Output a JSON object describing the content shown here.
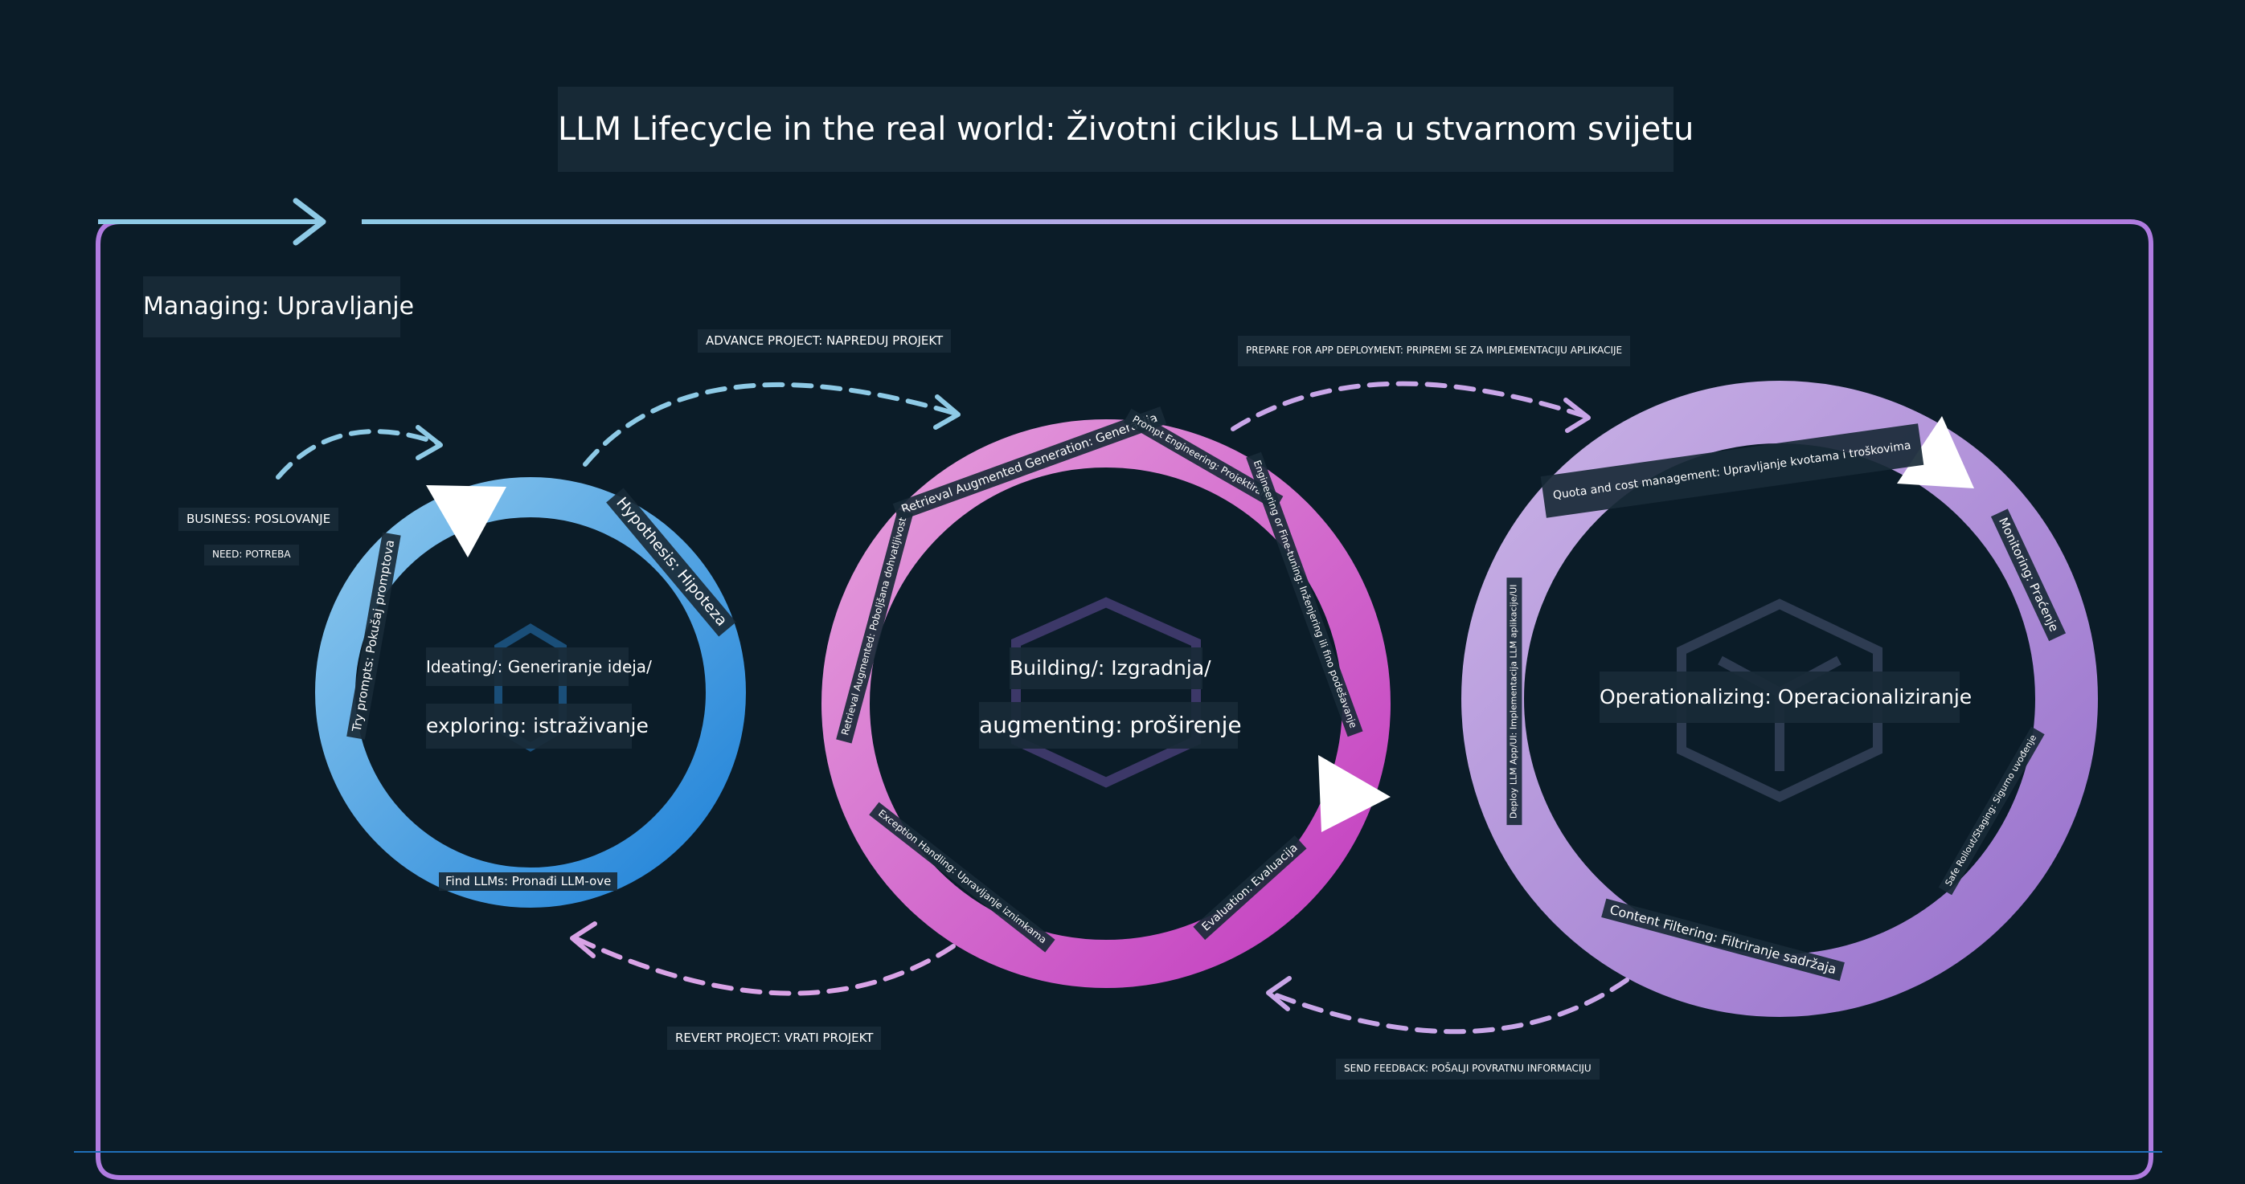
{
  "title": "LLM Lifecycle in the real world: Životni ciklus LLM-a u stvarnom svijetu",
  "outer_frame": {
    "label": "Managing: Upravljanje"
  },
  "colors": {
    "background": "#0b1c28",
    "ideating_ring": "#2b8fde",
    "building_ring": "#cf52c8",
    "operationalizing_ring": "#a686d8",
    "arrow_blue": "#8ecae6",
    "arrow_pink": "#d9a3e6"
  },
  "left_notes": {
    "business": "BUSINESS: POSLOVANJE",
    "need": "NEED: POTREBA"
  },
  "transitions": {
    "advance": "ADVANCE PROJECT: NAPREDUJ PROJEKT",
    "prepare": "PREPARE FOR APP DEPLOYMENT: PRIPREMI SE ZA IMPLEMENTACIJU APLIKACIJE",
    "revert": "REVERT PROJECT: VRATI PROJEKT",
    "feedback": "SEND FEEDBACK: POŠALJI POVRATNU INFORMACIJU"
  },
  "stages": {
    "ideating": {
      "center_line1": "Ideating/: Generiranje ideja/",
      "center_line2": "exploring: istraživanje",
      "steps": [
        "Hypothesis: Hipoteza",
        "Try prompts: Pokušaj promptova",
        "Find LLMs: Pronađi LLM-ove"
      ]
    },
    "building": {
      "center_line1": "Building/: Izgradnja/",
      "center_line2": "augmenting: proširenje",
      "steps": [
        "Retrieval Augmented Generation: Generacija",
        "Prompt Engineering: Projektiranje",
        "Engineering or Fine-tuning: Inženjering ili fino podešavanje",
        "Retrieval Augmented: Poboljšana dohvatljivost",
        "Exception Handling: Upravljanje iznimkama",
        "Evaluation: Evaluacija"
      ]
    },
    "operationalizing": {
      "center_line1": "Operationalizing: Operacionaliziranje",
      "steps": [
        "Quota and cost management: Upravljanje kvotama i troškovima",
        "Monitoring: Praćenje",
        "Deploy LLM App/UI: Implementacija LLM aplikacije/UI",
        "Safe Rollout/Staging: Sigurno uvođenje",
        "Content Filtering: Filtriranje sadržaja"
      ]
    }
  }
}
